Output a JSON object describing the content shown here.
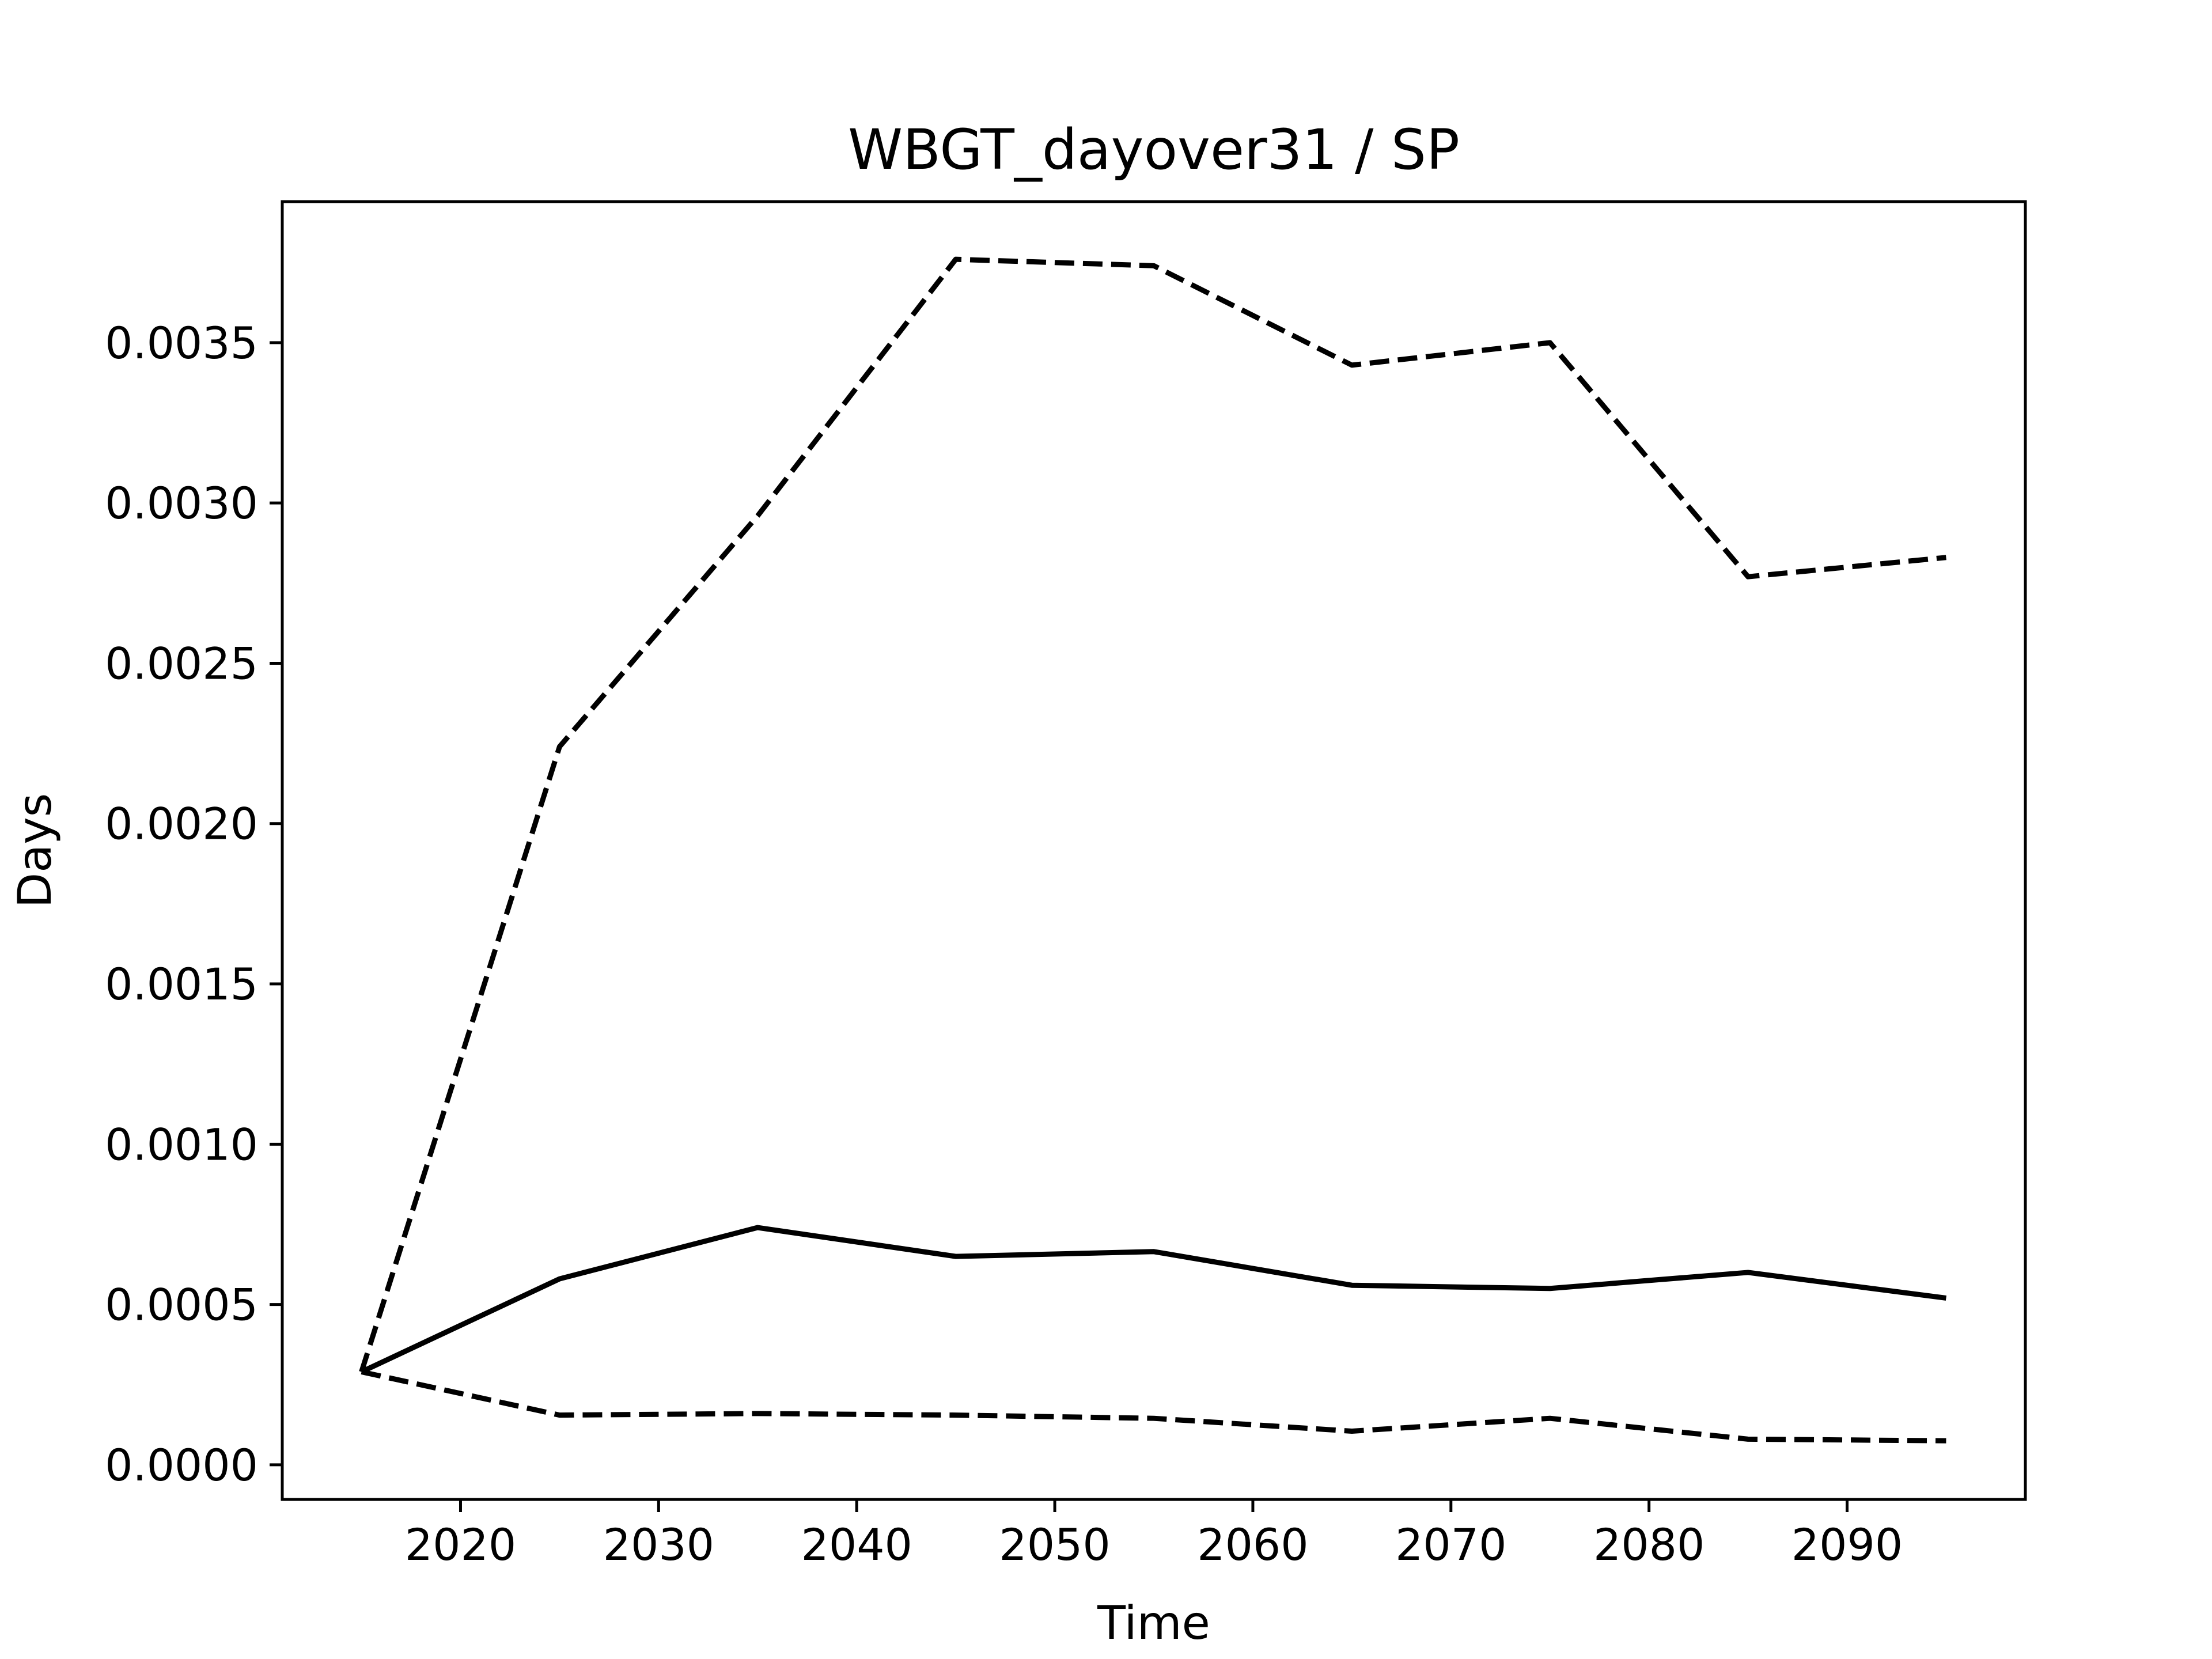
{
  "chart_data": {
    "type": "line",
    "title": "WBGT_dayover31 / SP",
    "xlabel": "Time",
    "ylabel": "Days",
    "x": [
      2015,
      2025,
      2035,
      2045,
      2055,
      2065,
      2075,
      2085,
      2095
    ],
    "xlim": [
      2011,
      2099
    ],
    "ylim": [
      -0.000108,
      0.00394
    ],
    "x_ticks": [
      2020,
      2030,
      2040,
      2050,
      2060,
      2070,
      2080,
      2090
    ],
    "x_tick_labels": [
      "2020",
      "2030",
      "2040",
      "2050",
      "2060",
      "2070",
      "2080",
      "2090"
    ],
    "y_ticks": [
      0,
      0.0005,
      0.001,
      0.0015,
      0.002,
      0.0025,
      0.003,
      0.0035
    ],
    "y_tick_labels": [
      "0.0000",
      "0.0005",
      "0.0010",
      "0.0015",
      "0.0020",
      "0.0025",
      "0.0030",
      "0.0035"
    ],
    "grid": false,
    "legend": null,
    "series": [
      {
        "style": "solid",
        "color": "#000000",
        "values": [
          0.00029,
          0.00058,
          0.00074,
          0.00065,
          0.000665,
          0.00056,
          0.00055,
          0.0006,
          0.00052
        ]
      },
      {
        "style": "dashed",
        "color": "#000000",
        "values": [
          0.00029,
          0.00224,
          0.00296,
          0.00376,
          0.00374,
          0.00343,
          0.0035,
          0.00277,
          0.00283
        ]
      },
      {
        "style": "dashed",
        "color": "#000000",
        "values": [
          0.00029,
          0.000155,
          0.00016,
          0.000155,
          0.000145,
          0.000105,
          0.000145,
          8e-05,
          7.5e-05
        ]
      }
    ]
  }
}
